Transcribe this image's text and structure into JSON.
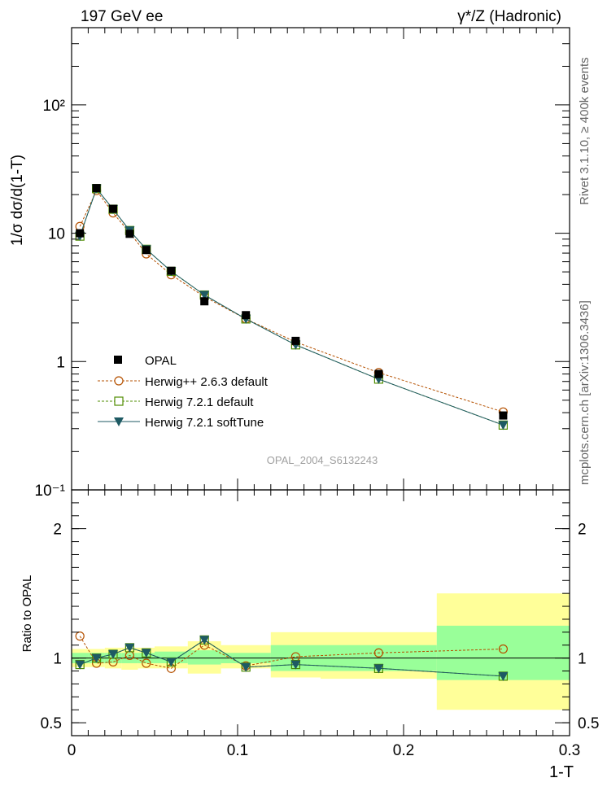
{
  "header": {
    "left_title": "197 GeV ee",
    "right_title": "γ*/Z (Hadronic)"
  },
  "side_labels": {
    "rivet": "Rivet 3.1.10, ≥ 400k events",
    "site": "mcplots.cern.ch [arXiv:1306.3436]"
  },
  "analysis_id": "OPAL_2004_S6132243",
  "colors": {
    "data": "#000000",
    "herwigpp": "#b55100",
    "herwig721": "#4f8c00",
    "softtune": "#1e5a63",
    "band_outer": "#ffff99",
    "band_inner": "#99ff99"
  },
  "chart_data": [
    {
      "type": "scatter",
      "panel": "main",
      "title": "197 GeV ee",
      "ylabel": "1/σ dσ/d(1-T)",
      "xlabel": "",
      "yscale": "log",
      "xlim": [
        0,
        0.3
      ],
      "ylim": [
        0.1,
        400
      ],
      "ytick_labels": [
        "10⁻¹",
        "1",
        "10",
        "10²"
      ],
      "legend_position": "lower-left",
      "x": [
        0.005,
        0.015,
        0.025,
        0.035,
        0.045,
        0.06,
        0.08,
        0.105,
        0.135,
        0.185,
        0.26
      ],
      "x_edges": [
        0,
        0.01,
        0.02,
        0.03,
        0.04,
        0.05,
        0.07,
        0.09,
        0.12,
        0.15,
        0.22,
        0.3
      ],
      "series": [
        {
          "name": "OPAL",
          "key": "data",
          "marker": "filled-square",
          "line": "none",
          "values": [
            10.0,
            22.5,
            15.5,
            9.9,
            7.4,
            5.1,
            2.95,
            2.3,
            1.45,
            0.8,
            0.38
          ]
        },
        {
          "name": "Herwig++ 2.6.3 default",
          "key": "herwigpp",
          "marker": "open-circle",
          "line": "dashed",
          "values": [
            11.3,
            21.5,
            14.4,
            10.1,
            6.9,
            4.75,
            3.2,
            2.15,
            1.42,
            0.82,
            0.405
          ]
        },
        {
          "name": "Herwig 7.2.1 default",
          "key": "herwig721",
          "marker": "open-square",
          "line": "dashed",
          "values": [
            9.5,
            22.3,
            15.4,
            10.5,
            7.5,
            5.05,
            3.3,
            2.15,
            1.35,
            0.73,
            0.32
          ]
        },
        {
          "name": "Herwig 7.2.1 softTune",
          "key": "softtune",
          "marker": "down-triangle",
          "line": "solid",
          "values": [
            9.5,
            22.3,
            15.4,
            10.5,
            7.5,
            5.05,
            3.3,
            2.15,
            1.35,
            0.73,
            0.32
          ]
        }
      ]
    },
    {
      "type": "scatter",
      "panel": "ratio",
      "ylabel": "Ratio to OPAL",
      "xlabel": "1-T",
      "xlim": [
        0,
        0.3
      ],
      "ylim": [
        0.4,
        2.3
      ],
      "xtick_labels": [
        "0",
        "0.1",
        "0.2",
        "0.3"
      ],
      "ytick_labels": [
        "0.5",
        "1",
        "2"
      ],
      "x": [
        0.005,
        0.015,
        0.025,
        0.035,
        0.045,
        0.06,
        0.08,
        0.105,
        0.135,
        0.185,
        0.26
      ],
      "x_edges": [
        0,
        0.01,
        0.02,
        0.03,
        0.04,
        0.05,
        0.07,
        0.09,
        0.12,
        0.15,
        0.22,
        0.3
      ],
      "band_inner": {
        "low": [
          0.96,
          0.96,
          0.96,
          0.96,
          0.96,
          0.96,
          0.95,
          0.96,
          0.9,
          0.9,
          0.83
        ],
        "high": [
          1.04,
          1.04,
          1.04,
          1.04,
          1.04,
          1.05,
          1.06,
          1.04,
          1.1,
          1.1,
          1.25
        ]
      },
      "band_outer": {
        "low": [
          0.93,
          0.93,
          0.92,
          0.91,
          0.92,
          0.92,
          0.88,
          0.92,
          0.85,
          0.84,
          0.6
        ],
        "high": [
          1.07,
          1.07,
          1.08,
          1.08,
          1.08,
          1.09,
          1.13,
          1.1,
          1.2,
          1.2,
          1.5
        ]
      },
      "series": [
        {
          "name": "Herwig++ 2.6.3 default",
          "key": "herwigpp",
          "marker": "open-circle",
          "line": "dashed",
          "values": [
            1.17,
            0.96,
            0.97,
            1.02,
            0.96,
            0.92,
            1.1,
            0.94,
            1.01,
            1.04,
            1.07
          ]
        },
        {
          "name": "Herwig 7.2.1 default",
          "key": "herwig721",
          "marker": "open-square",
          "line": "dashed",
          "values": [
            0.95,
            1.0,
            1.03,
            1.08,
            1.04,
            0.97,
            1.14,
            0.93,
            0.95,
            0.92,
            0.86
          ]
        },
        {
          "name": "Herwig 7.2.1 softTune",
          "key": "softtune",
          "marker": "down-triangle",
          "line": "solid",
          "values": [
            0.95,
            1.0,
            1.03,
            1.08,
            1.04,
            0.97,
            1.14,
            0.93,
            0.95,
            0.92,
            0.86
          ]
        }
      ]
    }
  ]
}
